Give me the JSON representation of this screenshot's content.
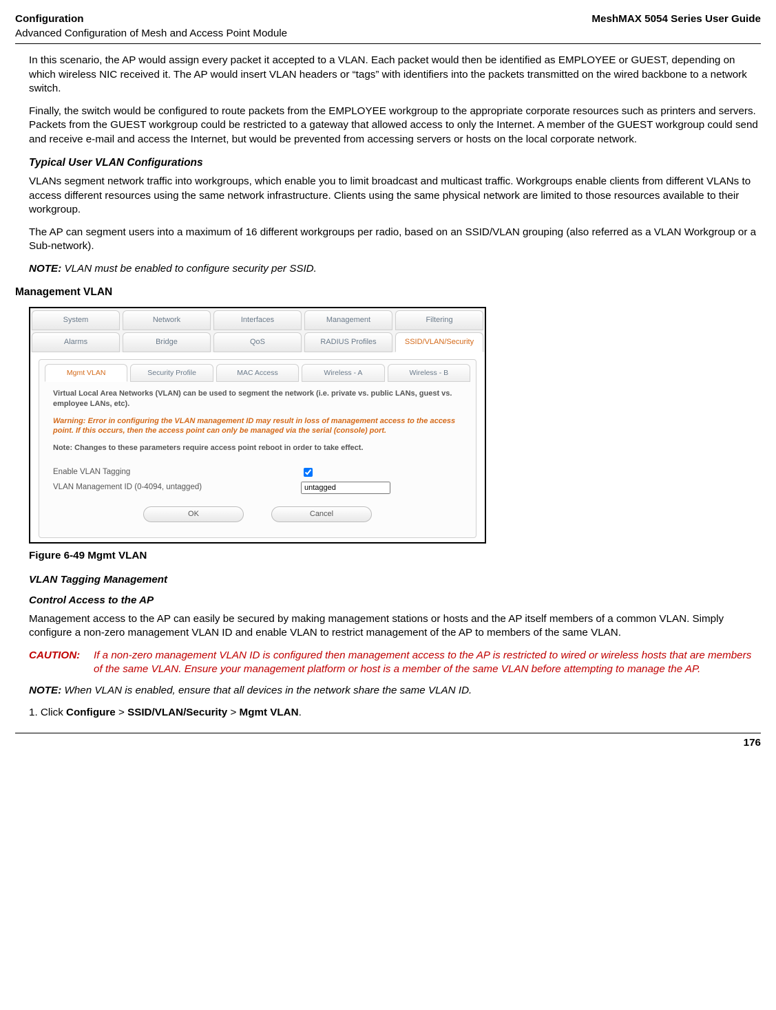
{
  "header": {
    "left_top": "Configuration",
    "left_bottom": "Advanced Configuration of Mesh and Access Point Module",
    "right": "MeshMAX 5054 Series User Guide"
  },
  "para1": "In this scenario, the AP would assign every packet it accepted to a VLAN. Each packet would then be identified as EMPLOYEE or GUEST, depending on which wireless NIC received it. The AP would insert VLAN headers or “tags” with identifiers into the packets transmitted on the wired backbone to a network switch.",
  "para2": "Finally, the switch would be configured to route packets from the EMPLOYEE workgroup to the appropriate corporate resources such as printers and servers. Packets from the GUEST workgroup could be restricted to a gateway that allowed access to only the Internet. A member of the GUEST workgroup could send and receive e-mail and access the Internet, but would be prevented from accessing servers or hosts on the local corporate network.",
  "sec1_title": "Typical User VLAN Configurations",
  "sec1_p1": "VLANs segment network traffic into workgroups, which enable you to limit broadcast and multicast traffic. Workgroups enable clients from different VLANs to access different resources using the same network infrastructure. Clients using the same physical network are limited to those resources available to their workgroup.",
  "sec1_p2": "The AP can segment users into a maximum of 16 different workgroups per radio, based on an SSID/VLAN grouping (also referred as a VLAN Workgroup or a Sub-network).",
  "note1_label": "NOTE:",
  "note1_body": "VLAN must be enabled to configure security per SSID.",
  "h2_mgmt": "Management VLAN",
  "screenshot": {
    "top_tabs": [
      "System",
      "Network",
      "Interfaces",
      "Management",
      "Filtering"
    ],
    "top_tabs2": [
      "Alarms",
      "Bridge",
      "QoS",
      "RADIUS Profiles",
      "SSID/VLAN/Security"
    ],
    "top_tabs2_active_index": 4,
    "sub_tabs": [
      "Mgmt VLAN",
      "Security Profile",
      "MAC Access",
      "Wireless - A",
      "Wireless - B"
    ],
    "sub_tabs_active_index": 0,
    "panel_intro": "Virtual Local Area Networks (VLAN) can be used to segment the network (i.e. private vs. public LANs, guest vs. employee LANs, etc).",
    "panel_warning": "Warning: Error in configuring the VLAN management ID may result in loss of management access to the access point. If this occurs, then the access point can only be managed via the serial (console) port.",
    "panel_note": "Note: Changes to these parameters require access point reboot in order to take effect.",
    "field1_label": "Enable VLAN Tagging",
    "field1_checked": true,
    "field2_label": "VLAN Management ID (0-4094, untagged)",
    "field2_value": "untagged",
    "btn_ok": "OK",
    "btn_cancel": "Cancel"
  },
  "fig_caption": "Figure 6-49 Mgmt VLAN",
  "sub1": "VLAN Tagging Management",
  "sub2": "Control Access to the AP",
  "p_control": "Management access to the AP can easily be secured by making management stations or hosts and the AP itself members of a common VLAN. Simply configure a non-zero management VLAN ID and enable VLAN to restrict management of the AP to members of the same VLAN.",
  "caution_label": "CAUTION:",
  "caution_body": "If a non-zero management VLAN ID is configured then management access to the AP is restricted to wired or wireless hosts that are members of the same VLAN. Ensure your management platform or host is a member of the same VLAN before attempting to manage the AP.",
  "note2_label": "NOTE:",
  "note2_body": "When VLAN is enabled, ensure that all devices in the network share the same VLAN ID.",
  "step1_num": "1.",
  "step1_pre": "Click ",
  "step1_b1": "Configure",
  "step1_gt1": " > ",
  "step1_b2": "SSID/VLAN/Security",
  "step1_gt2": " > ",
  "step1_b3": "Mgmt VLAN",
  "step1_post": ".",
  "page_no": "176"
}
